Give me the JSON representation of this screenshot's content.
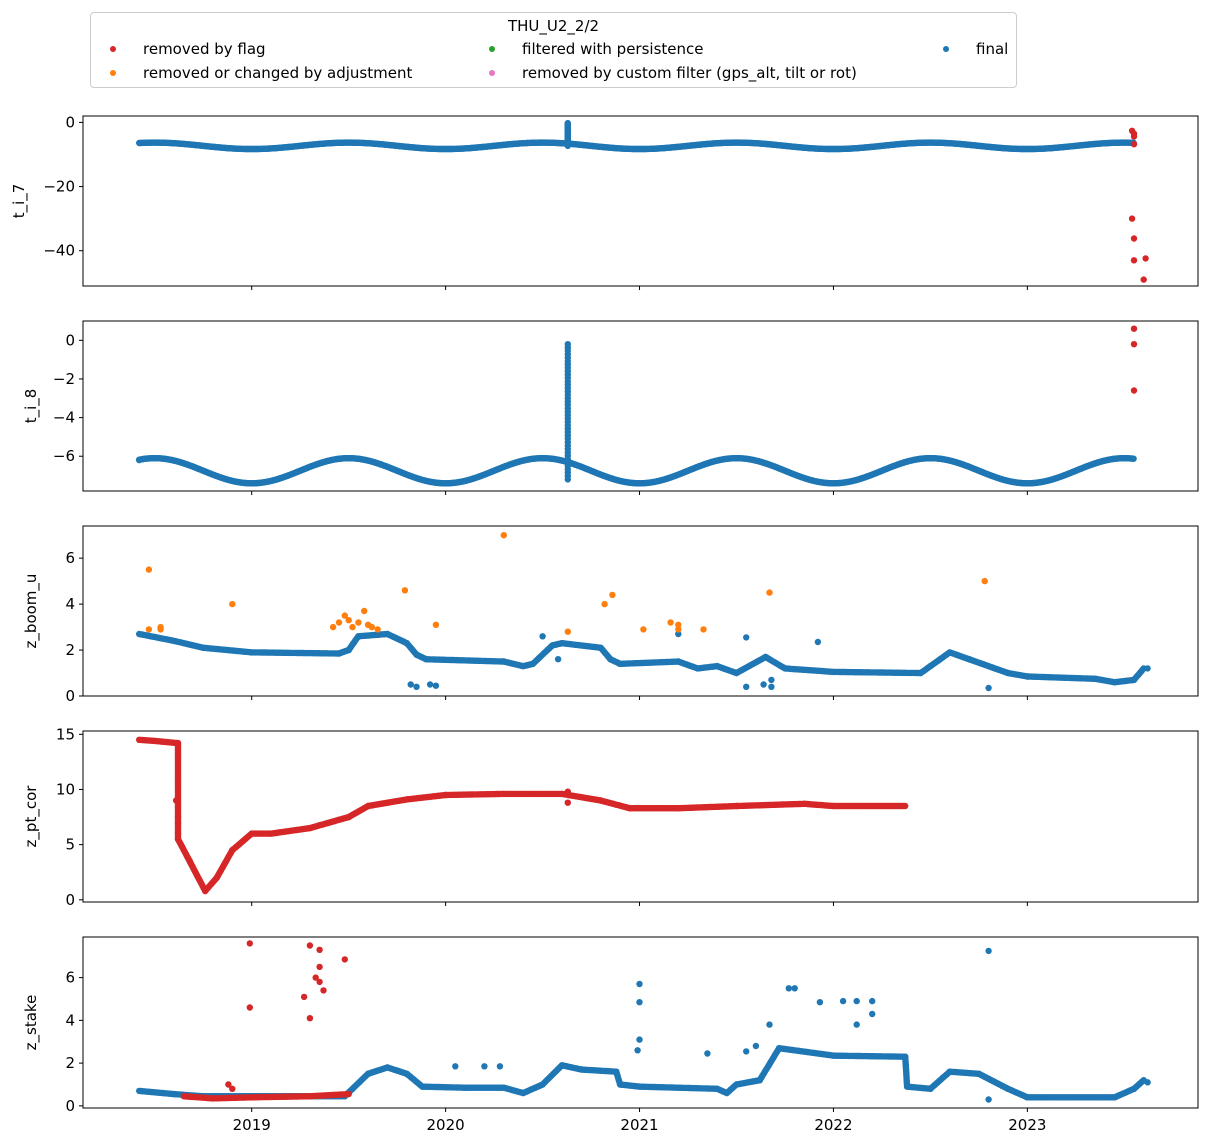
{
  "legend": {
    "title": "THU_U2_2/2",
    "items": [
      {
        "label": "removed by flag",
        "color": "#d62728"
      },
      {
        "label": "removed or changed by adjustment",
        "color": "#ff7f0e"
      },
      {
        "label": "filtered with persistence",
        "color": "#2ca02c"
      },
      {
        "label": "removed by custom filter (gps_alt, tilt or rot)",
        "color": "#e377c2"
      },
      {
        "label": "final",
        "color": "#1f77b4"
      }
    ]
  },
  "chart_data": [
    {
      "type": "scatter",
      "ylabel": "t_i_7",
      "ylim": [
        -51,
        2
      ],
      "yticks": [
        0,
        -20,
        -40
      ],
      "xlim": [
        2018.13,
        2023.88
      ],
      "xticks": [
        "2019",
        "2020",
        "2021",
        "2022",
        "2023"
      ],
      "series": [
        {
          "name": "final",
          "color": "#1f77b4",
          "kind": "wave",
          "x_range": [
            2018.42,
            2023.55
          ],
          "mean": -7.3,
          "amplitude": 1.0,
          "period_years": 1.0,
          "phase": 0.25,
          "spikes": [
            {
              "x": 2020.63,
              "y_from": -7.3,
              "y_to": -0.2
            }
          ]
        },
        {
          "name": "removed by flag",
          "color": "#d62728",
          "points": [
            [
              2023.54,
              -2.6
            ],
            [
              2023.55,
              -3.5
            ],
            [
              2023.55,
              -4.4
            ],
            [
              2023.55,
              -6.8
            ],
            [
              2023.54,
              -30.0
            ],
            [
              2023.55,
              -36.2
            ],
            [
              2023.55,
              -43.0
            ],
            [
              2023.61,
              -42.4
            ],
            [
              2023.6,
              -49.0
            ]
          ]
        }
      ]
    },
    {
      "type": "scatter",
      "ylabel": "t_i_8",
      "ylim": [
        -7.8,
        1.0
      ],
      "yticks": [
        0,
        -2,
        -4,
        -6
      ],
      "xlim": [
        2018.13,
        2023.88
      ],
      "xticks": [
        "2019",
        "2020",
        "2021",
        "2022",
        "2023"
      ],
      "series": [
        {
          "name": "final",
          "color": "#1f77b4",
          "kind": "wave",
          "x_range": [
            2018.42,
            2023.55
          ],
          "mean": -6.75,
          "amplitude": 0.65,
          "period_years": 1.0,
          "phase": 0.25,
          "spikes": [
            {
              "x": 2020.63,
              "y_from": -7.2,
              "y_to": -0.2
            }
          ],
          "extra_points": [
            [
              2018.42,
              -6.2
            ]
          ]
        },
        {
          "name": "removed by flag",
          "color": "#d62728",
          "points": [
            [
              2023.55,
              0.6
            ],
            [
              2023.55,
              -0.2
            ],
            [
              2023.55,
              -2.6
            ]
          ]
        }
      ]
    },
    {
      "type": "scatter",
      "ylabel": "z_boom_u",
      "ylim": [
        0,
        7.4
      ],
      "yticks": [
        0,
        2,
        4,
        6
      ],
      "xlim": [
        2018.13,
        2023.88
      ],
      "xticks": [
        "2019",
        "2020",
        "2021",
        "2022",
        "2023"
      ],
      "series": [
        {
          "name": "final",
          "color": "#1f77b4",
          "kind": "path",
          "path": [
            [
              2018.42,
              2.7
            ],
            [
              2018.6,
              2.4
            ],
            [
              2018.75,
              2.1
            ],
            [
              2019.0,
              1.9
            ],
            [
              2019.45,
              1.85
            ],
            [
              2019.5,
              2.0
            ],
            [
              2019.55,
              2.6
            ],
            [
              2019.7,
              2.7
            ],
            [
              2019.8,
              2.3
            ],
            [
              2019.85,
              1.8
            ],
            [
              2019.9,
              1.6
            ],
            [
              2020.3,
              1.5
            ],
            [
              2020.4,
              1.3
            ],
            [
              2020.45,
              1.4
            ],
            [
              2020.55,
              2.2
            ],
            [
              2020.6,
              2.3
            ],
            [
              2020.8,
              2.1
            ],
            [
              2020.85,
              1.6
            ],
            [
              2020.9,
              1.4
            ],
            [
              2021.2,
              1.5
            ],
            [
              2021.3,
              1.2
            ],
            [
              2021.4,
              1.3
            ],
            [
              2021.5,
              1.0
            ],
            [
              2021.65,
              1.7
            ],
            [
              2021.75,
              1.2
            ],
            [
              2022.0,
              1.05
            ],
            [
              2022.45,
              1.0
            ],
            [
              2022.5,
              1.3
            ],
            [
              2022.6,
              1.9
            ],
            [
              2022.7,
              1.6
            ],
            [
              2022.9,
              1.0
            ],
            [
              2023.0,
              0.85
            ],
            [
              2023.35,
              0.75
            ],
            [
              2023.45,
              0.6
            ],
            [
              2023.55,
              0.7
            ],
            [
              2023.6,
              1.2
            ]
          ],
          "extra_points": [
            [
              2019.82,
              0.5
            ],
            [
              2019.85,
              0.4
            ],
            [
              2019.92,
              0.5
            ],
            [
              2019.95,
              0.45
            ],
            [
              2020.5,
              2.6
            ],
            [
              2020.58,
              1.6
            ],
            [
              2021.2,
              2.7
            ],
            [
              2021.55,
              2.55
            ],
            [
              2021.55,
              0.4
            ],
            [
              2021.64,
              0.5
            ],
            [
              2021.68,
              0.4
            ],
            [
              2021.68,
              0.7
            ],
            [
              2021.92,
              2.35
            ],
            [
              2022.8,
              0.35
            ],
            [
              2023.62,
              1.2
            ]
          ]
        },
        {
          "name": "removed or changed by adjustment",
          "color": "#ff7f0e",
          "points": [
            [
              2018.47,
              5.5
            ],
            [
              2018.47,
              2.9
            ],
            [
              2018.53,
              3.0
            ],
            [
              2018.53,
              2.9
            ],
            [
              2018.9,
              4.0
            ],
            [
              2019.42,
              3.0
            ],
            [
              2019.45,
              3.2
            ],
            [
              2019.48,
              3.5
            ],
            [
              2019.5,
              3.3
            ],
            [
              2019.52,
              3.0
            ],
            [
              2019.55,
              3.2
            ],
            [
              2019.58,
              3.7
            ],
            [
              2019.6,
              3.1
            ],
            [
              2019.62,
              3.0
            ],
            [
              2019.65,
              2.9
            ],
            [
              2019.79,
              4.6
            ],
            [
              2019.95,
              3.1
            ],
            [
              2020.3,
              7.0
            ],
            [
              2020.63,
              2.8
            ],
            [
              2020.82,
              4.0
            ],
            [
              2020.86,
              4.4
            ],
            [
              2021.02,
              2.9
            ],
            [
              2021.16,
              3.2
            ],
            [
              2021.2,
              3.1
            ],
            [
              2021.2,
              2.9
            ],
            [
              2021.33,
              2.9
            ],
            [
              2021.67,
              4.5
            ],
            [
              2022.78,
              5.0
            ]
          ]
        }
      ]
    },
    {
      "type": "scatter",
      "ylabel": "z_pt_cor",
      "ylim": [
        -0.2,
        15.3
      ],
      "yticks": [
        0,
        5,
        10,
        15
      ],
      "xlim": [
        2018.13,
        2023.88
      ],
      "xticks": [
        "2019",
        "2020",
        "2021",
        "2022",
        "2023"
      ],
      "series": [
        {
          "name": "removed by flag",
          "color": "#d62728",
          "kind": "path",
          "path": [
            [
              2018.42,
              14.5
            ],
            [
              2018.5,
              14.4
            ],
            [
              2018.62,
              14.2
            ],
            [
              2018.62,
              7.0
            ],
            [
              2018.62,
              5.5
            ],
            [
              2018.68,
              3.5
            ],
            [
              2018.76,
              0.8
            ],
            [
              2018.82,
              2.0
            ],
            [
              2018.9,
              4.5
            ],
            [
              2019.0,
              6.0
            ],
            [
              2019.1,
              6.0
            ],
            [
              2019.3,
              6.5
            ],
            [
              2019.5,
              7.5
            ],
            [
              2019.6,
              8.5
            ],
            [
              2019.8,
              9.1
            ],
            [
              2020.0,
              9.5
            ],
            [
              2020.3,
              9.6
            ],
            [
              2020.6,
              9.6
            ],
            [
              2020.8,
              9.0
            ],
            [
              2020.95,
              8.3
            ],
            [
              2021.2,
              8.3
            ],
            [
              2021.5,
              8.5
            ],
            [
              2021.85,
              8.7
            ],
            [
              2022.0,
              8.5
            ],
            [
              2022.37,
              8.5
            ]
          ],
          "extra_points": [
            [
              2018.61,
              9.0
            ],
            [
              2018.62,
              7.5
            ],
            [
              2018.62,
              6.0
            ],
            [
              2020.63,
              8.8
            ],
            [
              2020.63,
              9.8
            ]
          ]
        }
      ]
    },
    {
      "type": "scatter",
      "ylabel": "z_stake",
      "ylim": [
        -0.1,
        7.9
      ],
      "yticks": [
        0,
        2,
        4,
        6
      ],
      "xlim": [
        2018.13,
        2023.88
      ],
      "xticks": [
        "2019",
        "2020",
        "2021",
        "2022",
        "2023"
      ],
      "series": [
        {
          "name": "final",
          "color": "#1f77b4",
          "kind": "path",
          "path": [
            [
              2018.42,
              0.7
            ],
            [
              2018.6,
              0.55
            ],
            [
              2018.75,
              0.45
            ],
            [
              2019.48,
              0.45
            ],
            [
              2019.6,
              1.5
            ],
            [
              2019.7,
              1.8
            ],
            [
              2019.8,
              1.5
            ],
            [
              2019.88,
              0.9
            ],
            [
              2020.1,
              0.85
            ],
            [
              2020.3,
              0.85
            ],
            [
              2020.4,
              0.6
            ],
            [
              2020.5,
              1.0
            ],
            [
              2020.6,
              1.9
            ],
            [
              2020.7,
              1.7
            ],
            [
              2020.88,
              1.6
            ],
            [
              2020.9,
              1.0
            ],
            [
              2021.0,
              0.9
            ],
            [
              2021.4,
              0.8
            ],
            [
              2021.45,
              0.6
            ],
            [
              2021.5,
              1.0
            ],
            [
              2021.62,
              1.2
            ],
            [
              2021.72,
              2.7
            ],
            [
              2022.0,
              2.35
            ],
            [
              2022.37,
              2.3
            ],
            [
              2022.38,
              0.9
            ],
            [
              2022.5,
              0.8
            ],
            [
              2022.6,
              1.6
            ],
            [
              2022.75,
              1.5
            ],
            [
              2022.9,
              0.8
            ],
            [
              2023.0,
              0.4
            ],
            [
              2023.45,
              0.4
            ],
            [
              2023.55,
              0.8
            ],
            [
              2023.6,
              1.2
            ]
          ],
          "extra_points": [
            [
              2020.05,
              1.85
            ],
            [
              2020.2,
              1.85
            ],
            [
              2020.28,
              1.85
            ],
            [
              2021.0,
              5.7
            ],
            [
              2021.0,
              4.85
            ],
            [
              2021.0,
              3.1
            ],
            [
              2020.99,
              2.6
            ],
            [
              2021.35,
              2.45
            ],
            [
              2021.55,
              2.55
            ],
            [
              2021.6,
              2.8
            ],
            [
              2021.67,
              3.8
            ],
            [
              2021.77,
              5.5
            ],
            [
              2021.8,
              5.5
            ],
            [
              2021.93,
              4.85
            ],
            [
              2022.05,
              4.9
            ],
            [
              2022.12,
              4.9
            ],
            [
              2022.12,
              3.8
            ],
            [
              2022.2,
              4.9
            ],
            [
              2022.2,
              4.3
            ],
            [
              2022.8,
              7.25
            ],
            [
              2022.8,
              0.3
            ],
            [
              2023.62,
              1.1
            ]
          ]
        },
        {
          "name": "removed by flag",
          "color": "#d62728",
          "kind": "path",
          "path": [
            [
              2018.65,
              0.45
            ],
            [
              2018.8,
              0.35
            ],
            [
              2019.0,
              0.4
            ],
            [
              2019.3,
              0.45
            ],
            [
              2019.5,
              0.55
            ]
          ],
          "points": [
            [
              2018.99,
              7.6
            ],
            [
              2018.99,
              4.6
            ],
            [
              2019.27,
              5.1
            ],
            [
              2019.3,
              7.5
            ],
            [
              2019.3,
              4.1
            ],
            [
              2019.33,
              6.0
            ],
            [
              2019.35,
              5.8
            ],
            [
              2019.35,
              6.5
            ],
            [
              2019.35,
              7.3
            ],
            [
              2019.37,
              5.4
            ],
            [
              2019.48,
              6.85
            ],
            [
              2018.88,
              1.0
            ],
            [
              2018.9,
              0.8
            ]
          ]
        }
      ]
    }
  ]
}
